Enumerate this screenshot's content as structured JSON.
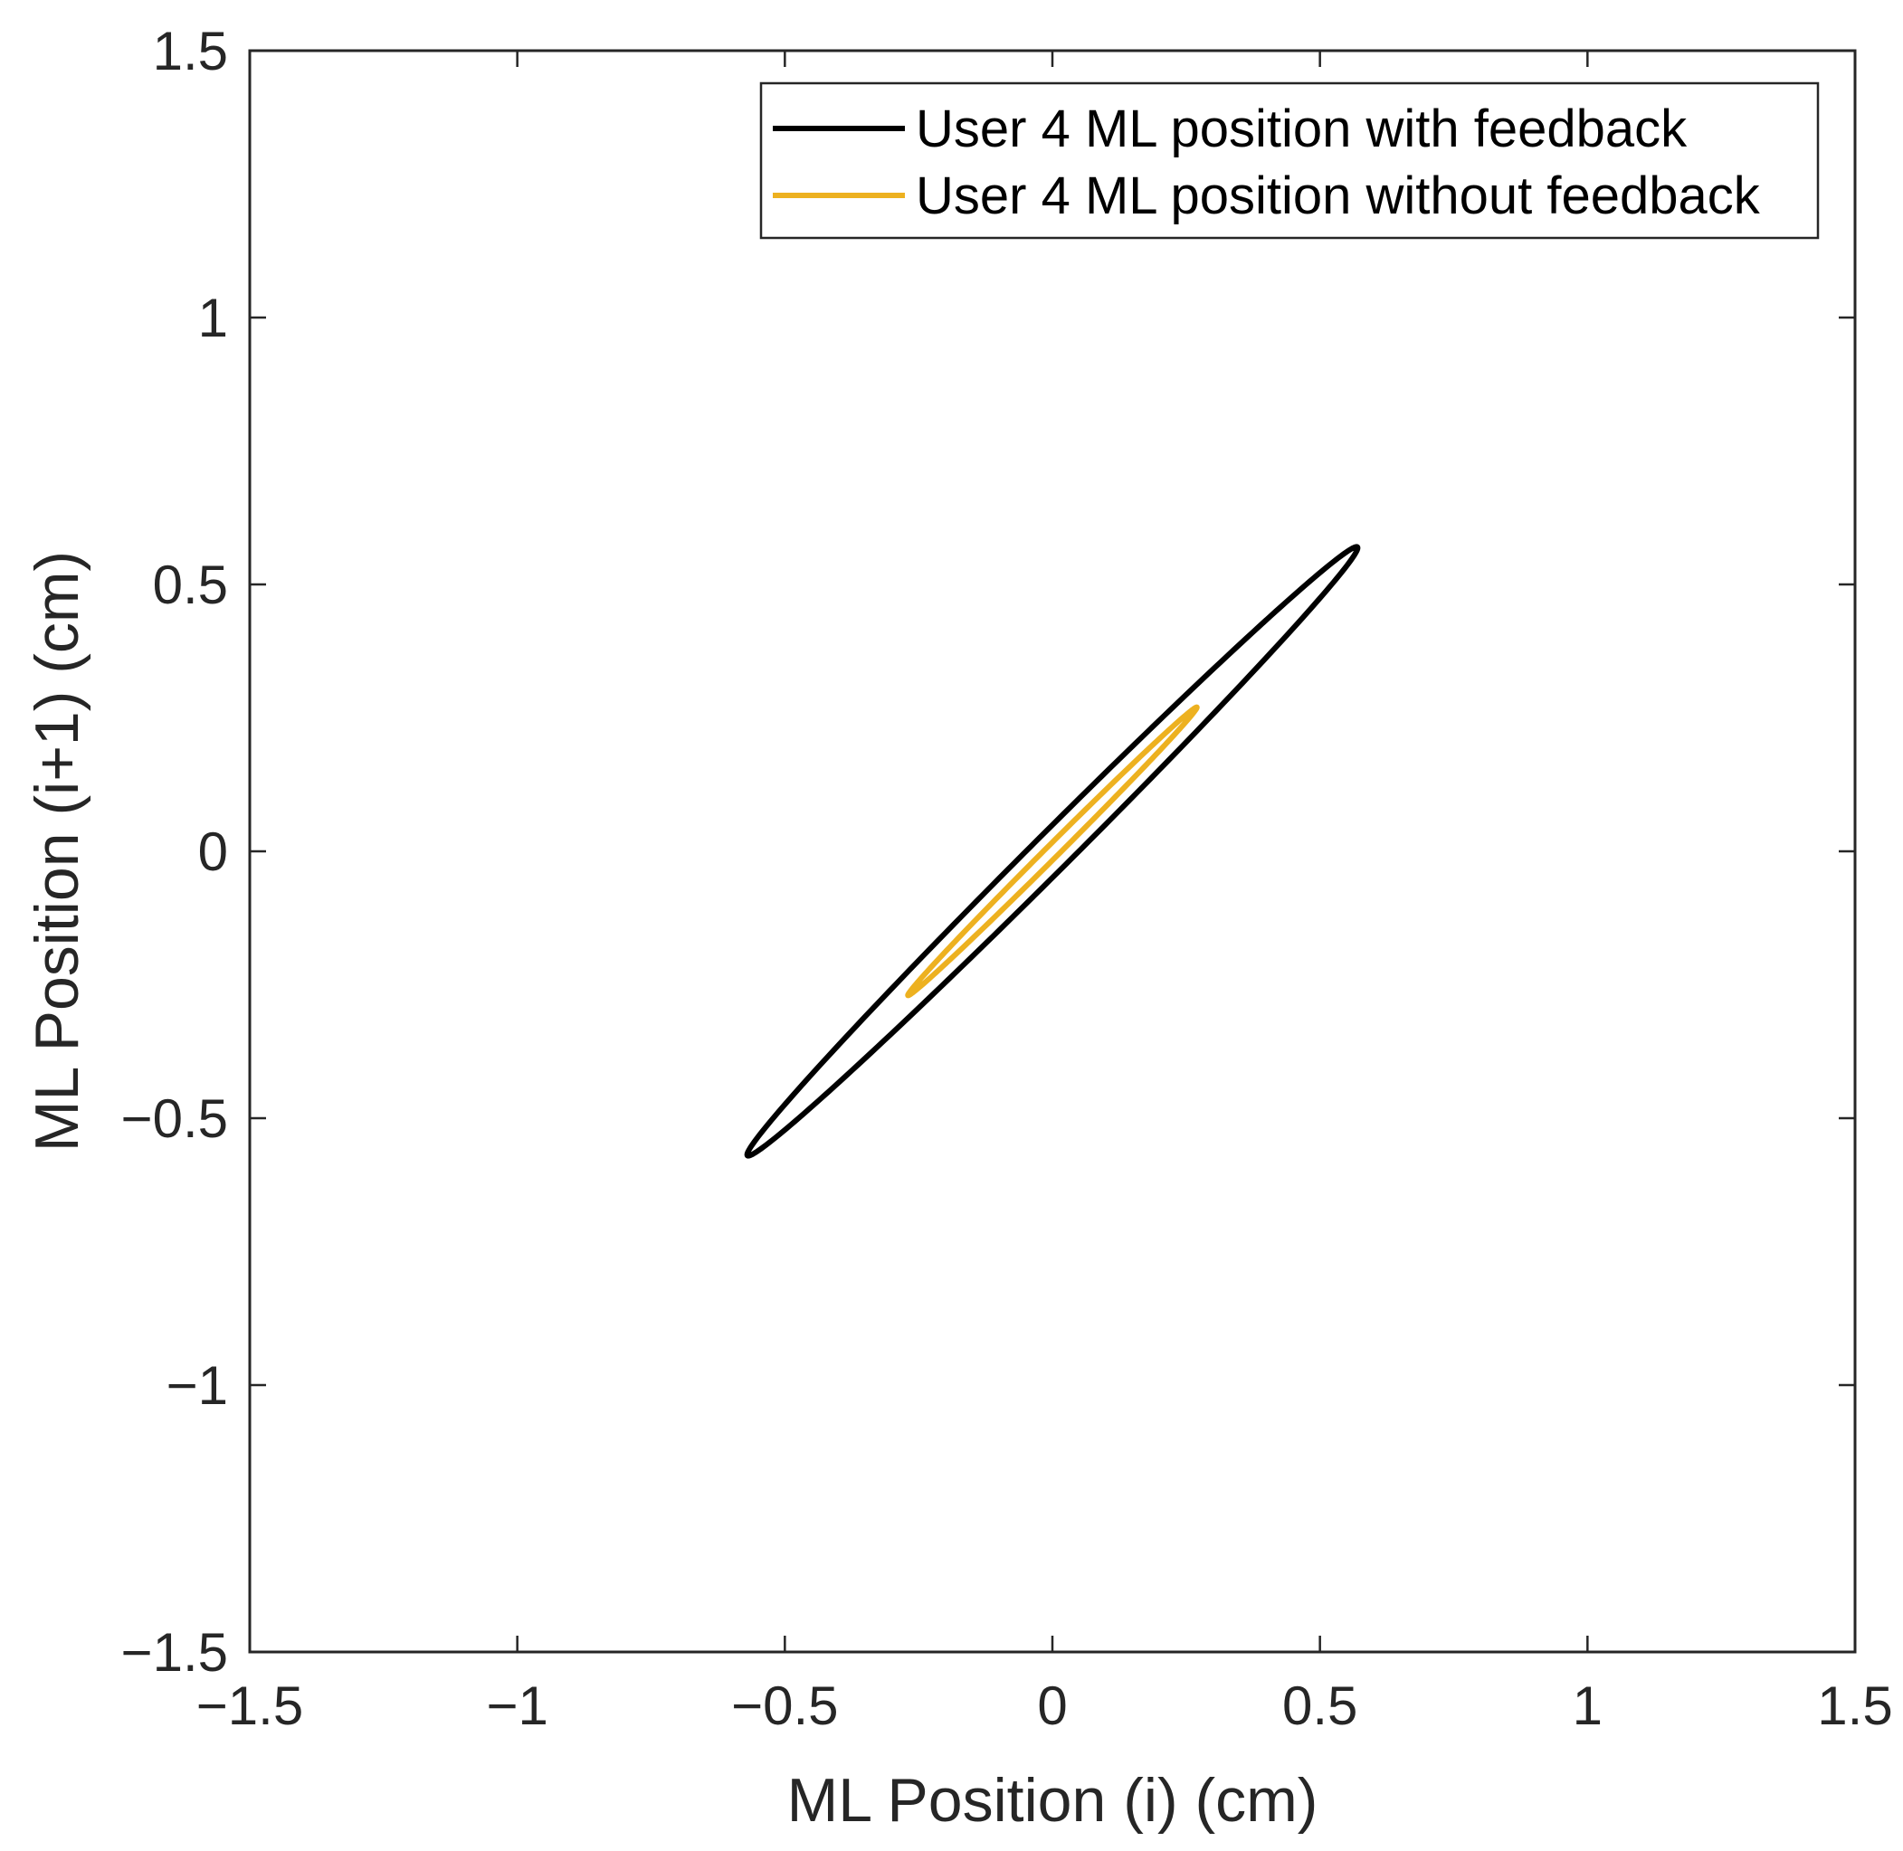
{
  "chart_data": {
    "type": "line",
    "xlabel": "ML Position (i) (cm)",
    "ylabel": "ML Position (i+1) (cm)",
    "xlim": [
      -1.5,
      1.5
    ],
    "ylim": [
      -1.5,
      1.5
    ],
    "xticks": [
      -1.5,
      -1,
      -0.5,
      0,
      0.5,
      1,
      1.5
    ],
    "yticks": [
      -1.5,
      -1,
      -0.5,
      0,
      0.5,
      1,
      1.5
    ],
    "xtick_labels": [
      "−1.5",
      "−1",
      "−0.5",
      "0",
      "0.5",
      "1",
      "1.5"
    ],
    "ytick_labels": [
      "−1.5",
      "−1",
      "−0.5",
      "0",
      "0.5",
      "1",
      "1.5"
    ],
    "grid": false,
    "legend_position": "top-right",
    "series": [
      {
        "name": "User 4 ML position with feedback",
        "color": "#000000",
        "shape": "ellipse",
        "center": [
          0,
          0
        ],
        "endpoints": [
          [
            -0.57,
            -0.57
          ],
          [
            0.57,
            0.57
          ]
        ],
        "semi_minor": 0.035
      },
      {
        "name": "User 4 ML position without feedback",
        "color": "#EDB120",
        "shape": "ellipse",
        "center": [
          0,
          0
        ],
        "endpoints": [
          [
            -0.27,
            -0.27
          ],
          [
            0.27,
            0.27
          ]
        ],
        "semi_minor": 0.012
      }
    ]
  }
}
